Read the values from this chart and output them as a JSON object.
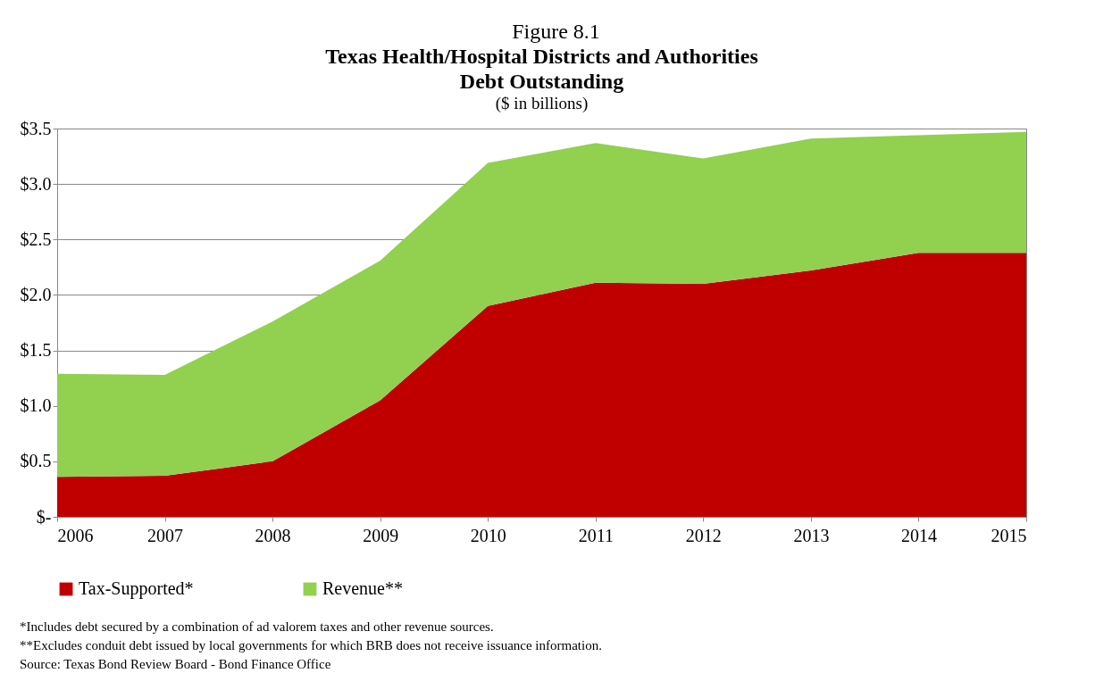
{
  "chart_data": {
    "type": "area",
    "stacked": true,
    "title": "Texas Health/Hospital Districts and Authorities\nDebt Outstanding",
    "subtitle": "($ in billions)",
    "x": [
      2006,
      2007,
      2008,
      2009,
      2010,
      2011,
      2012,
      2013,
      2014,
      2015
    ],
    "series": [
      {
        "name": "Tax-Supported*",
        "color": "#c00000",
        "values": [
          0.36,
          0.37,
          0.5,
          1.05,
          1.9,
          2.11,
          2.1,
          2.22,
          2.38,
          2.38
        ]
      },
      {
        "name": "Revenue**",
        "color": "#92d050",
        "values": [
          0.93,
          0.91,
          1.26,
          1.26,
          1.29,
          1.26,
          1.13,
          1.19,
          1.06,
          1.09
        ]
      }
    ],
    "xlim": [
      2006,
      2015
    ],
    "xticks": [
      2006,
      2007,
      2008,
      2009,
      2010,
      2011,
      2012,
      2013,
      2014,
      2015
    ],
    "ylim": [
      0,
      3.5
    ],
    "yticks": [
      {
        "value": 0,
        "label": "$-"
      },
      {
        "value": 0.5,
        "label": "$0.5"
      },
      {
        "value": 1,
        "label": "$1.0"
      },
      {
        "value": 1.5,
        "label": "$1.5"
      },
      {
        "value": 2,
        "label": "$2.0"
      },
      {
        "value": 2.5,
        "label": "$2.5"
      },
      {
        "value": 3,
        "label": "$3.0"
      },
      {
        "value": 3.5,
        "label": "$3.5"
      }
    ],
    "grid": "y",
    "legend": "bottom",
    "annotations": [
      "Figure 8.1",
      "*Includes debt secured by a combination of ad valorem taxes and other revenue sources.",
      "**Excludes conduit debt issued by local governments for which BRB does not receive issuance information.",
      "Source: Texas Bond Review Board - Bond Finance Office"
    ]
  }
}
